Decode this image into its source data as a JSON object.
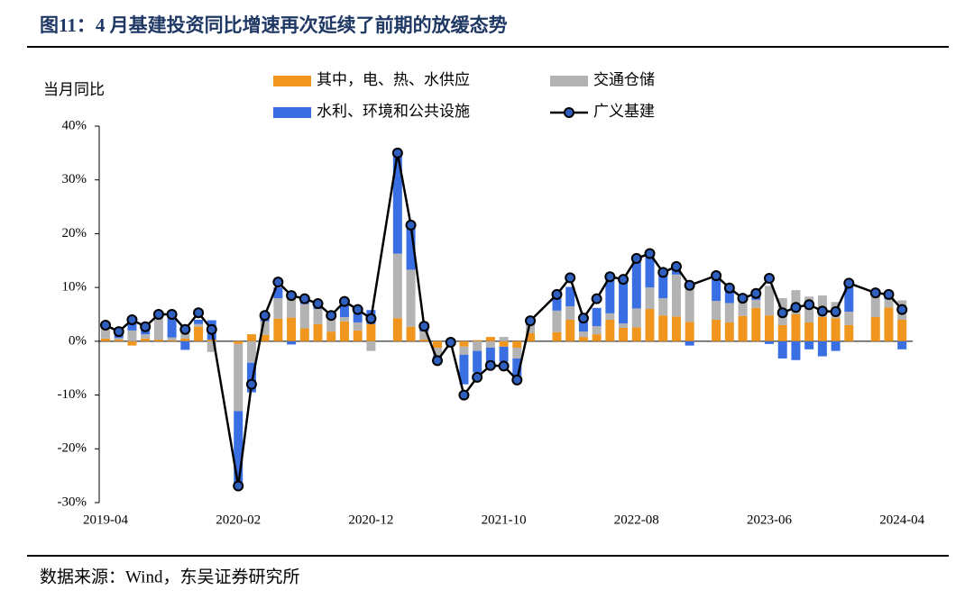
{
  "chart_data": {
    "type": "bar",
    "title": "图11：4 月基建投资同比增速再次延续了前期的放缓态势",
    "ylabel": "当月同比",
    "source": "数据来源：Wind，东吴证券研究所",
    "x": [
      "2019-04",
      "2019-05",
      "2019-06",
      "2019-07",
      "2019-08",
      "2019-09",
      "2019-10",
      "2019-11",
      "2019-12",
      "2020-02",
      "2020-03",
      "2020-04",
      "2020-05",
      "2020-06",
      "2020-07",
      "2020-08",
      "2020-09",
      "2020-10",
      "2020-11",
      "2020-12",
      "2021-02",
      "2021-03",
      "2021-04",
      "2021-05",
      "2021-06",
      "2021-07",
      "2021-08",
      "2021-09",
      "2021-10",
      "2021-11",
      "2021-12",
      "2022-02",
      "2022-03",
      "2022-04",
      "2022-05",
      "2022-06",
      "2022-07",
      "2022-08",
      "2022-09",
      "2022-10",
      "2022-11",
      "2022-12",
      "2023-02",
      "2023-03",
      "2023-04",
      "2023-05",
      "2023-06",
      "2023-07",
      "2023-08",
      "2023-09",
      "2023-10",
      "2023-11",
      "2023-12",
      "2024-02",
      "2024-03",
      "2024-04"
    ],
    "xticks": [
      "2019-04",
      "2020-02",
      "2020-12",
      "2021-10",
      "2022-08",
      "2023-06",
      "2024-04"
    ],
    "ylim": [
      -30,
      40
    ],
    "yticks": [
      {
        "value": -30,
        "label": "-30%"
      },
      {
        "value": -20,
        "label": "-20%"
      },
      {
        "value": -10,
        "label": "-10%"
      },
      {
        "value": 0,
        "label": "0%"
      },
      {
        "value": 10,
        "label": "10%"
      },
      {
        "value": 20,
        "label": "20%"
      },
      {
        "value": 30,
        "label": "30%"
      },
      {
        "value": 40,
        "label": "40%"
      }
    ],
    "series": [
      {
        "name": "其中，电、热、水供应",
        "type": "bar",
        "color": "#f0961e",
        "values": [
          0.5,
          0.3,
          -0.8,
          0.5,
          0.3,
          0.2,
          0.5,
          2.7,
          0.3,
          -0.5,
          1.3,
          1.2,
          4.2,
          4.4,
          2.4,
          3.2,
          1.8,
          3.7,
          2.0,
          3.2,
          4.3,
          2.7,
          0.3,
          -1.2,
          -0.3,
          -1.0,
          0.2,
          0.8,
          -1.0,
          -1.2,
          1.5,
          1.7,
          4.0,
          0.8,
          1.3,
          4.0,
          2.5,
          2.6,
          6.0,
          4.8,
          4.6,
          3.6,
          4.0,
          3.5,
          4.7,
          6.2,
          4.8,
          3.0,
          5.0,
          3.5,
          4.5,
          4.3,
          3.0,
          4.5,
          6.3,
          4.0
        ]
      },
      {
        "name": "交通仓储",
        "type": "bar",
        "color": "#b3b3b3",
        "values": [
          2.0,
          0.3,
          2.0,
          0.8,
          4.5,
          0.5,
          1.0,
          0.5,
          -2.0,
          -12.5,
          -4.0,
          2.5,
          3.8,
          3.5,
          4.5,
          2.8,
          2.5,
          0.8,
          1.5,
          -1.8,
          12.0,
          10.6,
          1.5,
          -1.5,
          -0.2,
          -1.5,
          -1.8,
          -1.2,
          0.8,
          -2.0,
          1.5,
          4.0,
          2.5,
          1.0,
          1.5,
          1.2,
          0.8,
          3.5,
          4.0,
          3.2,
          7.8,
          6.4,
          3.5,
          3.6,
          3.0,
          1.5,
          5.5,
          5.0,
          4.5,
          4.8,
          4.0,
          3.0,
          2.5,
          4.5,
          1.5,
          3.6
        ]
      },
      {
        "name": "水利、环境和公共设施",
        "type": "bar",
        "color": "#3a6fe3",
        "values": [
          0.5,
          0.8,
          1.8,
          1.0,
          0.3,
          4.0,
          -1.6,
          0.8,
          3.6,
          -14.0,
          -5.5,
          1.0,
          2.0,
          -0.6,
          0.5,
          1.0,
          0.5,
          2.5,
          2.2,
          2.6,
          18.5,
          8.3,
          1.0,
          -0.5,
          0.5,
          -5.5,
          -4.0,
          -3.0,
          -2.8,
          -3.8,
          0.8,
          3.0,
          3.6,
          2.3,
          3.4,
          6.8,
          8.2,
          9.3,
          6.3,
          4.8,
          1.5,
          -0.8,
          4.6,
          2.7,
          0.3,
          1.2,
          -0.5,
          -3.2,
          -3.5,
          -1.5,
          -2.8,
          -1.8,
          5.3,
          0.1,
          0.5,
          -1.5
        ]
      },
      {
        "name": "广义基建",
        "type": "line",
        "color": "#000000",
        "marker_color": "#2f5fbf",
        "values": [
          3.0,
          1.8,
          4.0,
          2.7,
          5.0,
          5.0,
          2.2,
          5.3,
          2.2,
          -26.9,
          -8.0,
          4.8,
          11.0,
          8.5,
          7.9,
          7.0,
          4.8,
          7.4,
          5.9,
          4.2,
          35.0,
          21.6,
          2.8,
          -3.6,
          -0.2,
          -10.0,
          -6.7,
          -4.5,
          -4.6,
          -7.2,
          3.8,
          8.7,
          11.8,
          4.3,
          7.9,
          12.0,
          11.5,
          15.4,
          16.3,
          12.8,
          13.9,
          10.4,
          12.2,
          9.9,
          8.0,
          8.9,
          11.7,
          5.3,
          6.3,
          6.8,
          5.6,
          5.5,
          10.8,
          9.0,
          8.7,
          5.9
        ]
      }
    ]
  }
}
